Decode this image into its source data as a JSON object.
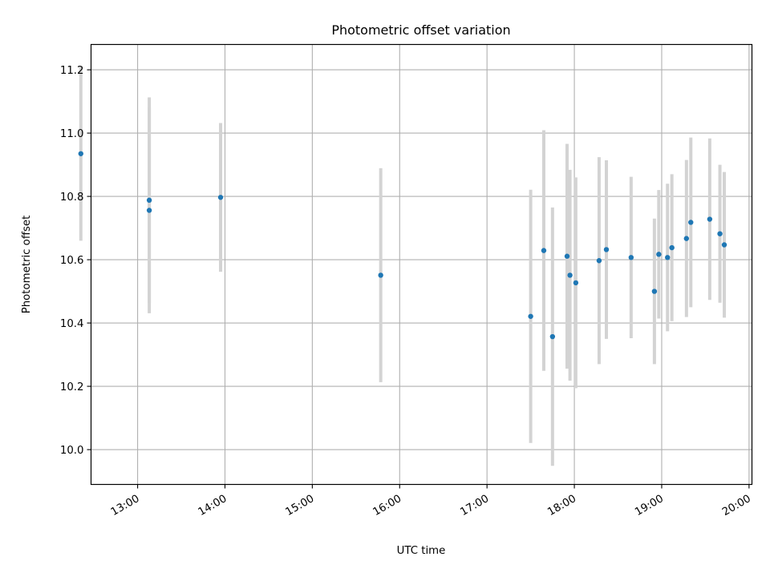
{
  "chart_data": {
    "type": "scatter",
    "title": "Photometric offset variation",
    "xlabel": "UTC time",
    "ylabel": "Photometric offset",
    "x_unit": "time",
    "xlim": [
      "12:28",
      "20:02"
    ],
    "ylim": [
      9.89,
      11.28
    ],
    "x_ticks": [
      "13:00",
      "14:00",
      "15:00",
      "16:00",
      "17:00",
      "18:00",
      "19:00",
      "20:00"
    ],
    "y_ticks": [
      "10.0",
      "10.2",
      "10.4",
      "10.6",
      "10.8",
      "11.0",
      "11.2"
    ],
    "grid": true,
    "colors": {
      "points": "#1f77b4",
      "error_bars": "#d3d3d3",
      "grid": "#b0b0b0"
    },
    "points": [
      {
        "t": "12:21",
        "y": 10.935,
        "err": 0.275
      },
      {
        "t": "13:08",
        "y": 10.788,
        "err": 0.325
      },
      {
        "t": "13:08",
        "y": 10.756,
        "err": 0.325
      },
      {
        "t": "13:57",
        "y": 10.797,
        "err": 0.235
      },
      {
        "t": "15:47",
        "y": 10.551,
        "err": 0.338
      },
      {
        "t": "17:30",
        "y": 10.421,
        "err": 0.4
      },
      {
        "t": "17:39",
        "y": 10.629,
        "err": 0.38
      },
      {
        "t": "17:45",
        "y": 10.357,
        "err": 0.408
      },
      {
        "t": "17:55",
        "y": 10.611,
        "err": 0.355
      },
      {
        "t": "17:57",
        "y": 10.551,
        "err": 0.333
      },
      {
        "t": "18:01",
        "y": 10.527,
        "err": 0.333
      },
      {
        "t": "18:17",
        "y": 10.597,
        "err": 0.327
      },
      {
        "t": "18:22",
        "y": 10.632,
        "err": 0.282
      },
      {
        "t": "18:39",
        "y": 10.607,
        "err": 0.255
      },
      {
        "t": "18:55",
        "y": 10.5,
        "err": 0.23
      },
      {
        "t": "18:58",
        "y": 10.617,
        "err": 0.203
      },
      {
        "t": "19:04",
        "y": 10.607,
        "err": 0.233
      },
      {
        "t": "19:07",
        "y": 10.638,
        "err": 0.232
      },
      {
        "t": "19:17",
        "y": 10.667,
        "err": 0.248
      },
      {
        "t": "19:20",
        "y": 10.718,
        "err": 0.268
      },
      {
        "t": "19:33",
        "y": 10.728,
        "err": 0.255
      },
      {
        "t": "19:40",
        "y": 10.682,
        "err": 0.218
      },
      {
        "t": "19:43",
        "y": 10.647,
        "err": 0.23
      }
    ]
  }
}
